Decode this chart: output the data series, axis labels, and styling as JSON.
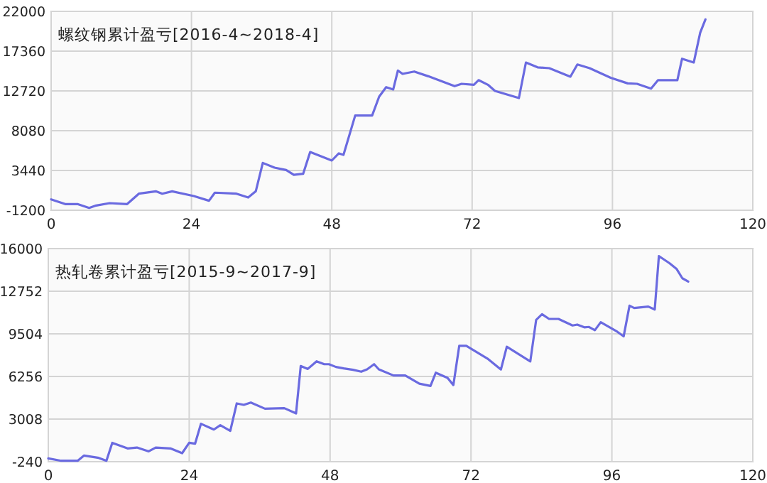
{
  "chart_data": [
    {
      "type": "line",
      "title": "螺纹钢累计盈亏[2016-4~2018-4]",
      "xlim": [
        0,
        120
      ],
      "xticks": [
        0,
        24,
        48,
        72,
        96,
        120
      ],
      "ylim": [
        -1200,
        22000
      ],
      "yticks": [
        -1200,
        3440,
        8080,
        12720,
        17360,
        22000
      ],
      "grid": true,
      "series": [
        {
          "color": "#6a6ae0",
          "x": [
            0,
            2.4,
            4.5,
            6.5,
            7.7,
            10,
            13,
            15,
            17.9,
            19,
            20.7,
            24.4,
            27,
            28,
            31.7,
            33.7,
            35,
            36.2,
            38.2,
            40.2,
            41.5,
            43.1,
            44.3,
            48,
            49.2,
            50,
            52,
            54.9,
            56.1,
            57.3,
            58.5,
            59.3,
            60.1,
            62.1,
            64.5,
            69,
            70.2,
            72.3,
            73.1,
            74.7,
            75.9,
            80,
            81.2,
            83.2,
            85.2,
            88.8,
            90,
            92.1,
            95.7,
            98.6,
            100.2,
            102.6,
            103.8,
            107.1,
            107.9,
            109.9,
            111,
            111.9
          ],
          "values": [
            70,
            -480,
            -480,
            -930,
            -650,
            -370,
            -480,
            730,
            1010,
            730,
            1010,
            460,
            -90,
            850,
            730,
            290,
            1010,
            4320,
            3770,
            3490,
            2940,
            3050,
            5590,
            4600,
            5430,
            5260,
            9850,
            9850,
            12060,
            13160,
            12880,
            15100,
            14710,
            14980,
            14430,
            13270,
            13550,
            13440,
            13980,
            13440,
            12720,
            11890,
            16030,
            15470,
            15370,
            14380,
            15800,
            15370,
            14260,
            13600,
            13550,
            12990,
            13980,
            13980,
            16470,
            16030,
            19510,
            21060
          ]
        }
      ]
    },
    {
      "type": "line",
      "title": "热轧卷累计盈亏[2015-9~2017-9]",
      "xlim": [
        0,
        120
      ],
      "xticks": [
        0,
        24,
        48,
        72,
        96,
        120
      ],
      "ylim": [
        -240,
        16000
      ],
      "yticks": [
        -240,
        3008,
        6256,
        9504,
        12752,
        16000
      ],
      "grid": true,
      "series": [
        {
          "color": "#6a6ae0",
          "x": [
            0,
            2.2,
            5,
            6.1,
            8.6,
            9.9,
            10.9,
            13.5,
            15.1,
            17.1,
            18.3,
            20.8,
            22.8,
            24,
            25,
            26,
            28.2,
            29.3,
            31,
            32.1,
            33.3,
            34.5,
            36.9,
            40.2,
            42.2,
            43,
            44.2,
            45.7,
            47,
            47.8,
            49,
            50.3,
            51.9,
            53.3,
            54.3,
            55.5,
            56.3,
            58.8,
            60.8,
            63.2,
            65.1,
            66,
            68,
            69,
            70,
            71.2,
            74.8,
            77.1,
            78.1,
            82.1,
            83.1,
            84.1,
            85.3,
            86.9,
            89.3,
            90.1,
            91.3,
            92.1,
            93.1,
            94.1,
            96.9,
            98,
            99,
            99.8,
            102.2,
            103.3,
            104,
            105.8,
            107,
            108,
            109
          ],
          "values": [
            10,
            -170,
            -170,
            230,
            50,
            -170,
            1200,
            770,
            840,
            550,
            840,
            770,
            410,
            1200,
            1130,
            2650,
            2210,
            2540,
            2110,
            4200,
            4090,
            4270,
            3800,
            3840,
            3440,
            7050,
            6830,
            7410,
            7190,
            7190,
            6980,
            6870,
            6760,
            6620,
            6800,
            7190,
            6800,
            6330,
            6330,
            5710,
            5530,
            6540,
            6150,
            5600,
            8590,
            8590,
            7620,
            6790,
            8520,
            7400,
            10570,
            11000,
            10640,
            10640,
            10140,
            10210,
            10000,
            10030,
            9780,
            10390,
            9670,
            9310,
            11650,
            11470,
            11580,
            11360,
            15430,
            14890,
            14460,
            13740,
            13490
          ]
        }
      ]
    }
  ]
}
